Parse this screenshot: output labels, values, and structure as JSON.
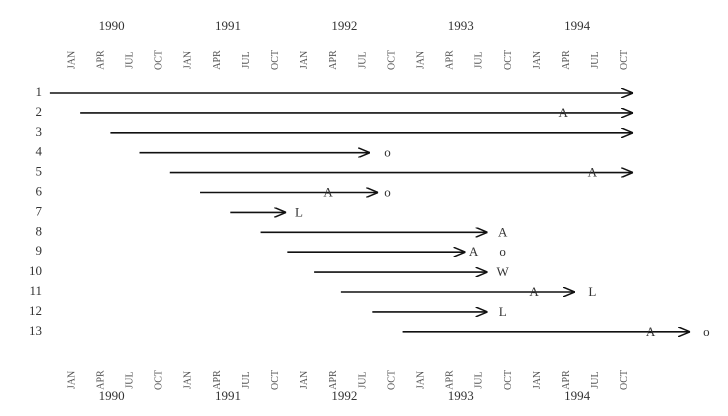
{
  "chart_data": {
    "type": "timeline",
    "xlim": [
      1989.5,
      1995.5
    ],
    "xticks": [
      {
        "value": 1990,
        "label": "JAN"
      },
      {
        "value": 1990.25,
        "label": "APR"
      },
      {
        "value": 1990.5,
        "label": "JUL"
      },
      {
        "value": 1990.75,
        "label": "OCT"
      },
      {
        "value": 1991,
        "label": "JAN"
      },
      {
        "value": 1991.25,
        "label": "APR"
      },
      {
        "value": 1991.5,
        "label": "JUL"
      },
      {
        "value": 1991.75,
        "label": "OCT"
      },
      {
        "value": 1992,
        "label": "JAN"
      },
      {
        "value": 1992.25,
        "label": "APR"
      },
      {
        "value": 1992.5,
        "label": "JUL"
      },
      {
        "value": 1992.75,
        "label": "OCT"
      },
      {
        "value": 1993,
        "label": "JAN"
      },
      {
        "value": 1993.25,
        "label": "APR"
      },
      {
        "value": 1993.5,
        "label": "JUL"
      },
      {
        "value": 1993.75,
        "label": "OCT"
      },
      {
        "value": 1994,
        "label": "JAN"
      },
      {
        "value": 1994.25,
        "label": "APR"
      },
      {
        "value": 1994.5,
        "label": "JUL"
      },
      {
        "value": 1994.75,
        "label": "OCT"
      }
    ],
    "year_ticks": [
      1990,
      1991,
      1992,
      1993,
      1994
    ],
    "categories": [
      "1",
      "2",
      "3",
      "4",
      "5",
      "6",
      "7",
      "8",
      "9",
      "10",
      "11",
      "12",
      "13"
    ],
    "starts": [
      1989.81,
      1990.07,
      1990.33,
      1990.58,
      1990.84,
      1991.1,
      1991.36,
      1991.62,
      1991.85,
      1992.08,
      1992.31,
      1992.58,
      1992.84
    ],
    "ends": [
      1994.82,
      1994.82,
      1994.82,
      1992.56,
      1994.82,
      1992.63,
      1991.84,
      1993.57,
      1993.38,
      1993.57,
      1994.32,
      1993.57,
      1995.31
    ],
    "annotations": [
      [],
      [
        {
          "label": "A",
          "x": 1994.22
        }
      ],
      [],
      [
        {
          "label": "o",
          "x": 1992.71
        }
      ],
      [
        {
          "label": "A",
          "x": 1994.47
        }
      ],
      [
        {
          "label": "A",
          "x": 1992.2
        },
        {
          "label": "o",
          "x": 1992.71
        }
      ],
      [
        {
          "label": "L",
          "x": 1991.95
        }
      ],
      [
        {
          "label": "A",
          "x": 1993.7
        }
      ],
      [
        {
          "label": "A",
          "x": 1993.45
        },
        {
          "label": "o",
          "x": 1993.7
        }
      ],
      [
        {
          "label": "W",
          "x": 1993.7
        }
      ],
      [
        {
          "label": "A",
          "x": 1993.97
        },
        {
          "label": "L",
          "x": 1994.47
        }
      ],
      [
        {
          "label": "L",
          "x": 1993.7
        }
      ],
      [
        {
          "label": "A",
          "x": 1994.97
        },
        {
          "label": "o",
          "x": 1995.45
        }
      ]
    ]
  }
}
